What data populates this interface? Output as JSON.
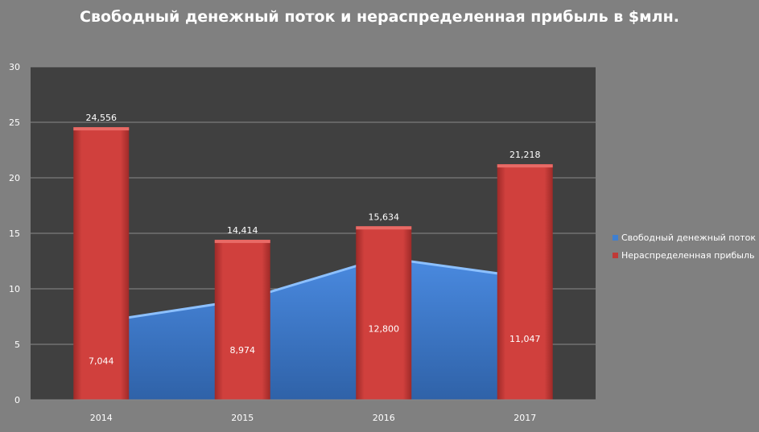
{
  "chart_data": {
    "type": "bar+area",
    "title": "Свободный денежный поток и нераспределенная прибыль в $млн.",
    "categories": [
      "2014",
      "2015",
      "2016",
      "2017"
    ],
    "ylim": [
      0,
      30
    ],
    "yticks": [
      "0",
      "5",
      "10",
      "15",
      "20",
      "25",
      "30"
    ],
    "grid": true,
    "legend_position": "right",
    "series": [
      {
        "name": "Свободный денежный поток",
        "type": "area",
        "color": "#3f7fd0",
        "values": [
          7.044,
          8.974,
          12.8,
          11.047
        ],
        "labels": [
          "7,044",
          "8,974",
          "12,800",
          "11,047"
        ]
      },
      {
        "name": "Нераспределенная прибыль",
        "type": "bar",
        "color": "#d0403d",
        "values": [
          24.556,
          14.414,
          15.634,
          21.218
        ],
        "labels": [
          "24,556",
          "14,414",
          "15,634",
          "21,218"
        ]
      }
    ]
  }
}
